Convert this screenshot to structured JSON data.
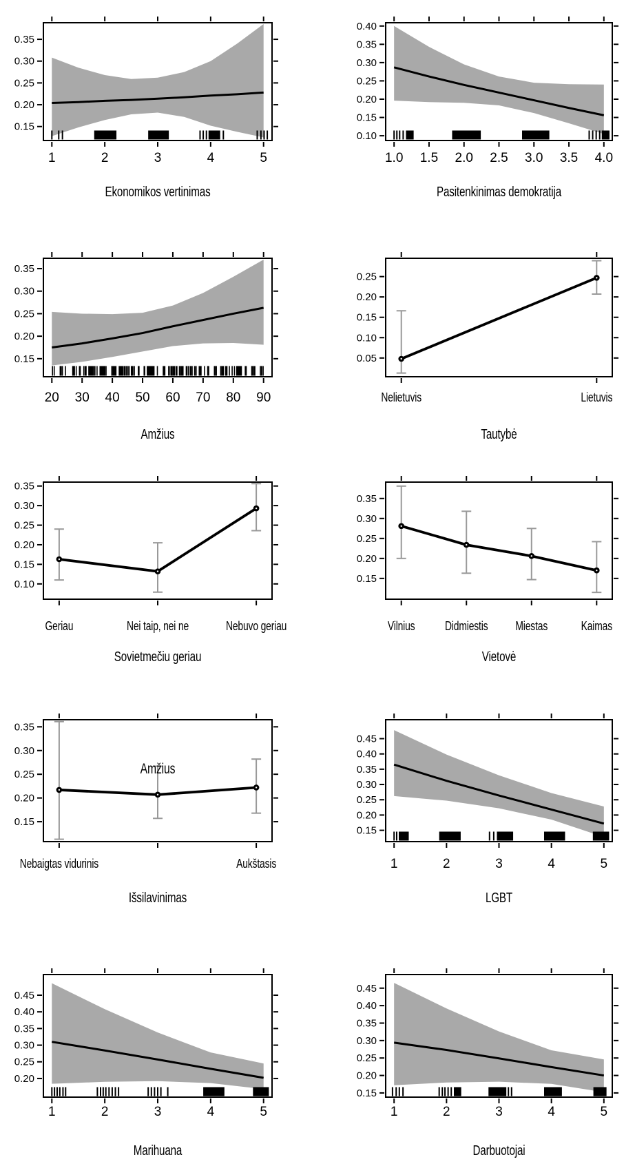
{
  "colors": {
    "band": "#a9a9a9",
    "line": "#000000",
    "error_bar": "#999999",
    "axis": "#000000",
    "rug": "#000000"
  },
  "chart_data": [
    {
      "id": "ekonomikos-vertinimas",
      "type": "line-band",
      "title": "Ekonomikos vertinimas",
      "xlim": [
        0.84,
        5.16
      ],
      "ylim": [
        0.118,
        0.388
      ],
      "xticks": [
        1,
        2,
        3,
        4,
        5
      ],
      "xtick_labels": [
        "1",
        "2",
        "3",
        "4",
        "5"
      ],
      "yticks": [
        0.15,
        0.2,
        0.25,
        0.3,
        0.35
      ],
      "ytick_labels": [
        "0.15",
        "0.20",
        "0.25",
        "0.30",
        "0.35"
      ],
      "line": {
        "x": [
          1,
          1.5,
          2,
          2.5,
          3,
          3.5,
          4,
          4.5,
          5
        ],
        "y": [
          0.204,
          0.206,
          0.209,
          0.211,
          0.214,
          0.217,
          0.221,
          0.224,
          0.228
        ]
      },
      "band": {
        "x": [
          1,
          1.5,
          2,
          2.5,
          3,
          3.5,
          4,
          4.5,
          5
        ],
        "upper": [
          0.308,
          0.285,
          0.268,
          0.259,
          0.262,
          0.275,
          0.3,
          0.34,
          0.385
        ],
        "lower": [
          0.128,
          0.148,
          0.165,
          0.178,
          0.182,
          0.172,
          0.152,
          0.138,
          0.125
        ]
      },
      "rug": {
        "ticks": [
          1.0,
          1.13,
          1.2,
          3.8,
          3.86,
          3.92,
          4.24,
          4.88,
          4.95,
          5.01,
          5.07
        ],
        "blocks": [
          [
            1.8,
            2.22
          ],
          [
            2.82,
            3.21
          ],
          [
            3.96,
            4.18
          ]
        ]
      }
    },
    {
      "id": "pasitenkinimas-demokratija",
      "type": "line-band",
      "title": "Pasitenkinimas demokratija",
      "xlim": [
        0.88,
        4.12
      ],
      "ylim": [
        0.087,
        0.409
      ],
      "xticks": [
        1.0,
        1.5,
        2.0,
        2.5,
        3.0,
        3.5,
        4.0
      ],
      "xtick_labels": [
        "1.0",
        "1.5",
        "2.0",
        "2.5",
        "3.0",
        "3.5",
        "4.0"
      ],
      "yticks": [
        0.1,
        0.15,
        0.2,
        0.25,
        0.3,
        0.35,
        0.4
      ],
      "ytick_labels": [
        "0.10",
        "0.15",
        "0.20",
        "0.25",
        "0.30",
        "0.35",
        "0.40"
      ],
      "line": {
        "x": [
          1,
          1.5,
          2,
          2.5,
          3,
          3.5,
          4
        ],
        "y": [
          0.287,
          0.262,
          0.239,
          0.218,
          0.197,
          0.176,
          0.156
        ]
      },
      "band": {
        "x": [
          1,
          1.5,
          2,
          2.5,
          3,
          3.5,
          4
        ],
        "upper": [
          0.4,
          0.343,
          0.295,
          0.262,
          0.245,
          0.241,
          0.24
        ],
        "lower": [
          0.196,
          0.192,
          0.19,
          0.183,
          0.162,
          0.134,
          0.105
        ]
      },
      "rug": {
        "ticks": [
          1.0,
          1.04,
          1.08,
          1.13,
          3.79,
          3.84,
          3.89,
          3.94
        ],
        "blocks": [
          [
            1.17,
            1.28
          ],
          [
            1.83,
            2.24
          ],
          [
            2.83,
            3.22
          ],
          [
            3.97,
            4.08
          ]
        ]
      }
    },
    {
      "id": "amzius",
      "type": "line-band",
      "title": "Amžius",
      "xlim": [
        17.2,
        92.8
      ],
      "ylim": [
        0.11,
        0.373
      ],
      "xticks": [
        20,
        30,
        40,
        50,
        60,
        70,
        80,
        90
      ],
      "xtick_labels": [
        "20",
        "30",
        "40",
        "50",
        "60",
        "70",
        "80",
        "90"
      ],
      "yticks": [
        0.15,
        0.2,
        0.25,
        0.3,
        0.35
      ],
      "ytick_labels": [
        "0.15",
        "0.20",
        "0.25",
        "0.30",
        "0.35"
      ],
      "line": {
        "x": [
          20,
          30,
          40,
          50,
          60,
          70,
          80,
          90
        ],
        "y": [
          0.175,
          0.184,
          0.195,
          0.207,
          0.222,
          0.236,
          0.25,
          0.263
        ]
      },
      "band": {
        "x": [
          20,
          30,
          40,
          50,
          60,
          70,
          80,
          90
        ],
        "upper": [
          0.254,
          0.25,
          0.249,
          0.252,
          0.268,
          0.296,
          0.332,
          0.37
        ],
        "lower": [
          0.135,
          0.143,
          0.154,
          0.166,
          0.178,
          0.184,
          0.185,
          0.181
        ]
      },
      "rug": {
        "dense": {
          "from": 20,
          "to": 90,
          "n": 150
        }
      }
    },
    {
      "id": "tautybe",
      "type": "points-ci",
      "title": "Tautybė",
      "categories": [
        "Nelietuvis",
        "Lietuvis"
      ],
      "ylim": [
        0.004,
        0.295
      ],
      "yticks": [
        0.05,
        0.1,
        0.15,
        0.2,
        0.25
      ],
      "ytick_labels": [
        "0.05",
        "0.10",
        "0.15",
        "0.20",
        "0.25"
      ],
      "points": [
        {
          "y": 0.048,
          "ci": [
            0.013,
            0.166
          ]
        },
        {
          "y": 0.247,
          "ci": [
            0.207,
            0.289
          ]
        }
      ]
    },
    {
      "id": "sovietmeciu-geriau",
      "type": "points-ci",
      "title": "Sovietmečiu geriau",
      "categories": [
        "Geriau",
        "Nei taip, nei ne",
        "Nebuvo geriau"
      ],
      "ylim": [
        0.061,
        0.36
      ],
      "yticks": [
        0.1,
        0.15,
        0.2,
        0.25,
        0.3,
        0.35
      ],
      "ytick_labels": [
        "0.10",
        "0.15",
        "0.20",
        "0.25",
        "0.30",
        "0.35"
      ],
      "points": [
        {
          "y": 0.163,
          "ci": [
            0.11,
            0.24
          ]
        },
        {
          "y": 0.132,
          "ci": [
            0.079,
            0.205
          ]
        },
        {
          "y": 0.293,
          "ci": [
            0.236,
            0.356
          ]
        }
      ]
    },
    {
      "id": "vietove",
      "type": "points-ci",
      "title": "Vietovė",
      "categories": [
        "Vilnius",
        "Didmiestis",
        "Miestas",
        "Kaimas"
      ],
      "ylim": [
        0.098,
        0.391
      ],
      "yticks": [
        0.15,
        0.2,
        0.25,
        0.3,
        0.35
      ],
      "ytick_labels": [
        "0.15",
        "0.20",
        "0.25",
        "0.30",
        "0.35"
      ],
      "points": [
        {
          "y": 0.281,
          "ci": [
            0.2,
            0.381
          ]
        },
        {
          "y": 0.234,
          "ci": [
            0.163,
            0.318
          ]
        },
        {
          "y": 0.206,
          "ci": [
            0.147,
            0.275
          ]
        },
        {
          "y": 0.17,
          "ci": [
            0.115,
            0.242
          ]
        }
      ]
    },
    {
      "id": "issilavinimas",
      "type": "points-ci",
      "title": "Išsilavinimas",
      "categories": [
        "Nebaigtas vidurinis",
        "",
        "Aukštasis"
      ],
      "ylim": [
        0.108,
        0.365
      ],
      "yticks": [
        0.15,
        0.2,
        0.25,
        0.3,
        0.35
      ],
      "ytick_labels": [
        "0.15",
        "0.20",
        "0.25",
        "0.30",
        "0.35"
      ],
      "points": [
        {
          "y": 0.217,
          "ci": [
            0.113,
            0.361
          ]
        },
        {
          "y": 0.207,
          "ci": [
            0.157,
            0.267
          ]
        },
        {
          "y": 0.222,
          "ci": [
            0.168,
            0.282
          ]
        }
      ],
      "annotation": {
        "text": "Amžius",
        "x": 2,
        "y": 0.252
      }
    },
    {
      "id": "lgbt",
      "type": "line-band",
      "title": "LGBT",
      "xlim": [
        0.84,
        5.16
      ],
      "ylim": [
        0.113,
        0.512
      ],
      "xticks": [
        1,
        2,
        3,
        4,
        5
      ],
      "xtick_labels": [
        "1",
        "2",
        "3",
        "4",
        "5"
      ],
      "yticks": [
        0.15,
        0.2,
        0.25,
        0.3,
        0.35,
        0.4,
        0.45
      ],
      "ytick_labels": [
        "0.15",
        "0.20",
        "0.25",
        "0.30",
        "0.35",
        "0.40",
        "0.45"
      ],
      "line": {
        "x": [
          1,
          2,
          3,
          4,
          5
        ],
        "y": [
          0.365,
          0.312,
          0.264,
          0.218,
          0.172
        ]
      },
      "band": {
        "x": [
          1,
          2,
          3,
          4,
          5
        ],
        "upper": [
          0.478,
          0.398,
          0.33,
          0.272,
          0.228
        ],
        "lower": [
          0.262,
          0.247,
          0.222,
          0.185,
          0.128
        ]
      },
      "rug": {
        "ticks": [
          1.0,
          1.05,
          2.82,
          2.9
        ],
        "blocks": [
          [
            1.09,
            1.28
          ],
          [
            1.86,
            2.27
          ],
          [
            2.96,
            3.27
          ],
          [
            3.86,
            4.26
          ],
          [
            4.79,
            5.1
          ]
        ]
      }
    },
    {
      "id": "marihuana",
      "type": "line-band",
      "title": "Marihuana",
      "xlim": [
        0.84,
        5.16
      ],
      "ylim": [
        0.144,
        0.512
      ],
      "xticks": [
        1,
        2,
        3,
        4,
        5
      ],
      "xtick_labels": [
        "1",
        "2",
        "3",
        "4",
        "5"
      ],
      "yticks": [
        0.2,
        0.25,
        0.3,
        0.35,
        0.4,
        0.45
      ],
      "ytick_labels": [
        "0.20",
        "0.25",
        "0.30",
        "0.35",
        "0.40",
        "0.45"
      ],
      "line": {
        "x": [
          1,
          2,
          3,
          4,
          5
        ],
        "y": [
          0.31,
          0.284,
          0.257,
          0.229,
          0.202
        ]
      },
      "band": {
        "x": [
          1,
          2,
          3,
          4,
          5
        ],
        "upper": [
          0.486,
          0.408,
          0.338,
          0.278,
          0.245
        ],
        "lower": [
          0.184,
          0.19,
          0.192,
          0.186,
          0.168
        ]
      },
      "rug": {
        "ticks": [
          1.0,
          1.05,
          1.1,
          1.15,
          1.21,
          1.26,
          1.86,
          1.92,
          1.97,
          2.02,
          2.08,
          2.14,
          2.2,
          2.26,
          2.82,
          2.88,
          2.94,
          3.0,
          3.06,
          3.19
        ],
        "blocks": [
          [
            3.86,
            4.26
          ],
          [
            4.8,
            5.1
          ]
        ]
      }
    },
    {
      "id": "darbuotojai",
      "type": "line-band",
      "title": "Darbuotojai",
      "xlim": [
        0.84,
        5.16
      ],
      "ylim": [
        0.138,
        0.489
      ],
      "xticks": [
        1,
        2,
        3,
        4,
        5
      ],
      "xtick_labels": [
        "1",
        "2",
        "3",
        "4",
        "5"
      ],
      "yticks": [
        0.15,
        0.2,
        0.25,
        0.3,
        0.35,
        0.4,
        0.45
      ],
      "ytick_labels": [
        "0.15",
        "0.20",
        "0.25",
        "0.30",
        "0.35",
        "0.40",
        "0.45"
      ],
      "line": {
        "x": [
          1,
          2,
          3,
          4,
          5
        ],
        "y": [
          0.294,
          0.273,
          0.249,
          0.224,
          0.2
        ]
      },
      "band": {
        "x": [
          1,
          2,
          3,
          4,
          5
        ],
        "upper": [
          0.465,
          0.392,
          0.326,
          0.272,
          0.246
        ],
        "lower": [
          0.172,
          0.18,
          0.182,
          0.176,
          0.152
        ]
      },
      "rug": {
        "ticks": [
          0.97,
          1.04,
          1.1,
          1.17,
          1.86,
          1.92,
          1.97,
          2.03,
          2.09,
          3.18,
          3.24
        ],
        "blocks": [
          [
            2.14,
            2.28
          ],
          [
            2.8,
            3.14
          ],
          [
            3.86,
            4.2
          ],
          [
            4.8,
            5.05
          ]
        ]
      }
    }
  ]
}
